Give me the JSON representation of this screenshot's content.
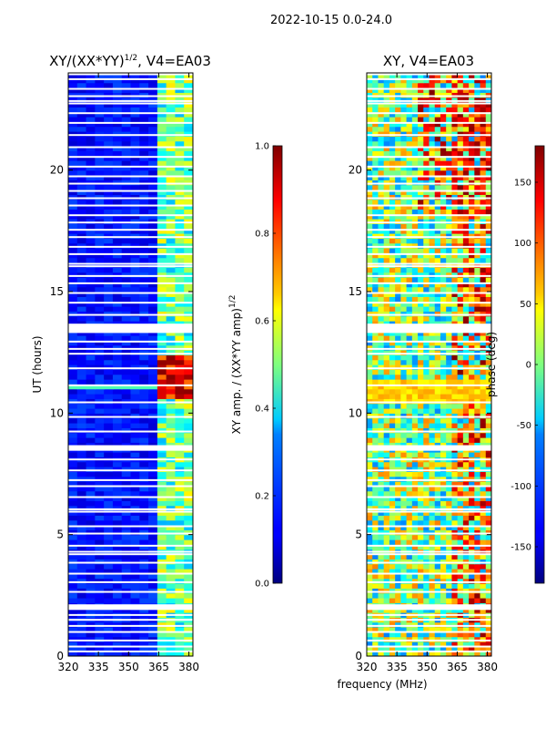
{
  "chart_data": [
    {
      "type": "heatmap",
      "title": "XY/(XX*YY)",
      "title_sup": "1/2",
      "title_suffix": ", V4=EA03",
      "xlabel": "",
      "ylabel": "UT (hours)",
      "xlim": [
        320,
        382
      ],
      "ylim": [
        0,
        24
      ],
      "xticks": [
        320,
        335,
        350,
        365,
        380
      ],
      "yticks": [
        0,
        5,
        10,
        15,
        20
      ],
      "colorbar": {
        "label": "XY amp. / (XX*YY amp)",
        "label_sup": "1/2",
        "range": [
          0.0,
          1.0
        ],
        "ticks": [
          "0.0",
          "0.2",
          "0.4",
          "0.6",
          "0.8",
          "1.0"
        ],
        "tick_values": [
          0.0,
          0.2,
          0.4,
          0.6,
          0.8,
          1.0
        ]
      }
    },
    {
      "type": "heatmap",
      "title": "XY, V4=EA03",
      "xlabel": "frequency (MHz)",
      "ylabel": "",
      "xlim": [
        320,
        382
      ],
      "ylim": [
        0,
        24
      ],
      "xticks": [
        320,
        335,
        350,
        365,
        380
      ],
      "yticks": [
        0,
        5,
        10,
        15,
        20
      ],
      "colorbar": {
        "label": "phase (deg)",
        "range": [
          -180,
          180
        ],
        "ticks": [
          "-150",
          "-100",
          "-50",
          "0",
          "50",
          "100",
          "150"
        ],
        "tick_values": [
          -150,
          -100,
          -50,
          0,
          50,
          100,
          150
        ]
      }
    }
  ],
  "figure": {
    "suptitle": "2022-10-15 0.0-24.0"
  }
}
